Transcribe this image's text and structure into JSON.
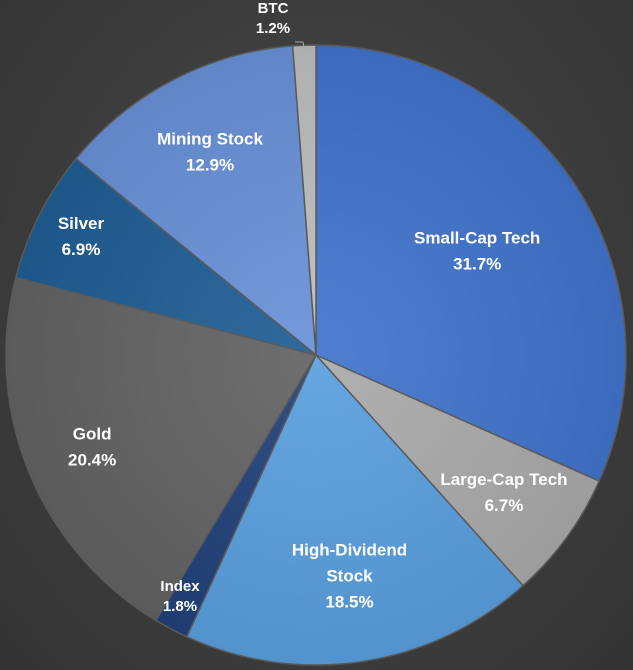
{
  "chart_data": {
    "type": "pie",
    "title": "",
    "legend": "none",
    "start_angle_deg": 0,
    "direction": "clockwise",
    "slices": [
      {
        "label": "Small-Cap Tech",
        "value": 31.7,
        "value_text": "31.7%",
        "color": "#4472C4"
      },
      {
        "label": "Large-Cap Tech",
        "value": 6.7,
        "value_text": "6.7%",
        "color": "#A5A5A5"
      },
      {
        "label": "High-Dividend Stock",
        "label_lines": [
          "High-Dividend",
          "Stock"
        ],
        "value": 18.5,
        "value_text": "18.5%",
        "color": "#5B9BD5"
      },
      {
        "label": "Index",
        "value": 1.8,
        "value_text": "1.8%",
        "color": "#264478"
      },
      {
        "label": "Gold",
        "value": 20.4,
        "value_text": "20.4%",
        "color": "#636363"
      },
      {
        "label": "Silver",
        "value": 6.9,
        "value_text": "6.9%",
        "color": "#255E91"
      },
      {
        "label": "Mining Stock",
        "value": 12.9,
        "value_text": "12.9%",
        "color": "#698ED0"
      },
      {
        "label": "BTC",
        "value": 1.2,
        "value_text": "1.2%",
        "color": "#B7B7B7"
      }
    ]
  }
}
